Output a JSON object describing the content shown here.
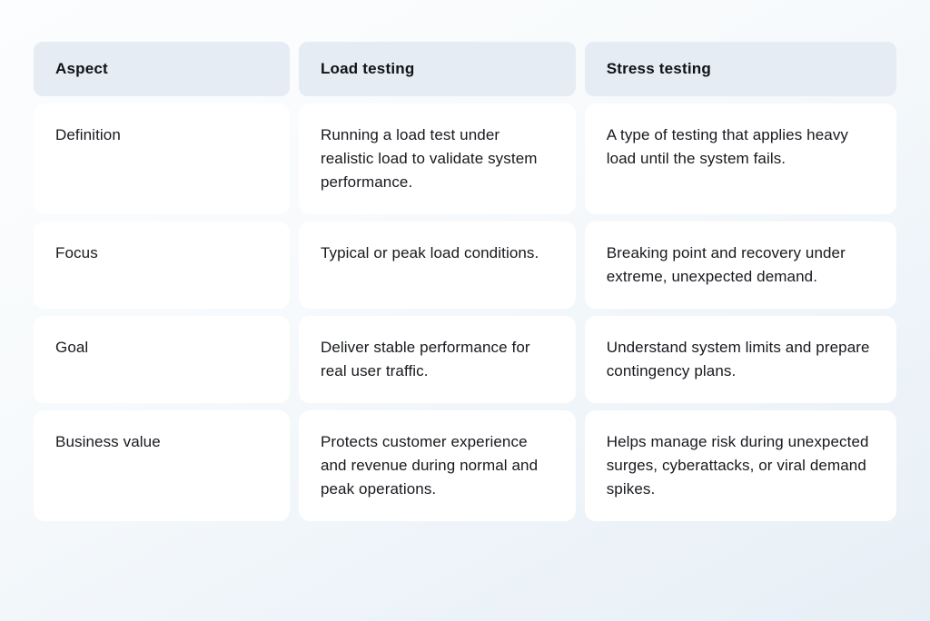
{
  "chart_data": {
    "type": "table",
    "title": "",
    "columns": [
      "Aspect",
      "Load testing",
      "Stress testing"
    ],
    "rows": [
      {
        "aspect": "Definition",
        "load": "Running a load test under realistic load to validate system performance.",
        "stress": "A type of testing that applies heavy load until the system fails."
      },
      {
        "aspect": "Focus",
        "load": "Typical or peak load conditions.",
        "stress": "Breaking point and recovery under extreme, unexpected demand."
      },
      {
        "aspect": "Goal",
        "load": "Deliver stable performance for real user traffic.",
        "stress": "Understand system limits and prepare contingency plans."
      },
      {
        "aspect": "Business value",
        "load": "Protects customer experience and revenue during normal and peak operations.",
        "stress": "Helps manage risk during unexpected surges, cyberattacks, or viral demand spikes."
      }
    ],
    "layout": {
      "legend": "none",
      "grid": "off",
      "header_row": true,
      "column_count": 3,
      "row_count": 4
    },
    "colors": {
      "header_bg": "#e5ecf3",
      "cell_bg": "#ffffff",
      "text": "#17191e",
      "page_bg_top": "#fcfdfe",
      "page_bg_bottom": "#e7eff6"
    }
  }
}
